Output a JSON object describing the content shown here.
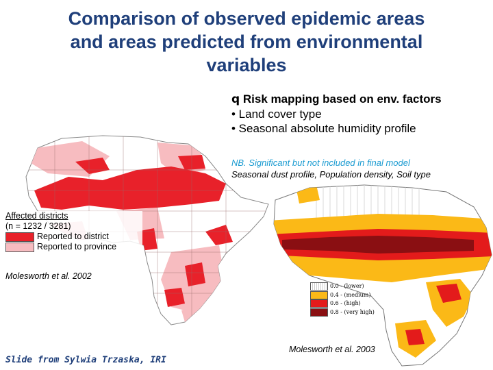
{
  "title": {
    "line1": "Comparison of observed epidemic areas",
    "line2": "and areas predicted from environmental",
    "line3": "variables"
  },
  "bullets": {
    "head_marker": "q",
    "head": "Risk mapping based on env. factors",
    "items": [
      "• Land cover type",
      "• Seasonal absolute humidity profile"
    ]
  },
  "note": {
    "nb": "NB. Significant but not included in final model",
    "factors": "Seasonal dust profile, Population density, Soil type"
  },
  "legend_left": {
    "title": "Affected districts",
    "count": "(n = 1232 / 3281)",
    "items": [
      {
        "label": "Reported to district",
        "color": "#e8212a"
      },
      {
        "label": "Reported to province",
        "color": "#f7bcc0"
      }
    ]
  },
  "citation_left": "Molesworth et al. 2002",
  "legend_right": {
    "items": [
      {
        "label": "0.0 - (lower)",
        "color": "#ffffff"
      },
      {
        "label": "0.4 - (medium)",
        "color": "#fbb917"
      },
      {
        "label": "0.6 - (high)",
        "color": "#e31b1b"
      },
      {
        "label": "0.8 - (very high)",
        "color": "#8a0f12"
      }
    ]
  },
  "citation_right": "Molesworth et al. 2003",
  "credit": "Slide from Sylwia Trzaska, IRI",
  "colors": {
    "title": "#1f3f7a",
    "nb": "#1a9bd1",
    "district": "#e8212a",
    "province": "#f7bcc0",
    "risk_medium": "#fbb917",
    "risk_high": "#e31b1b",
    "risk_very_high": "#8a0f12"
  }
}
